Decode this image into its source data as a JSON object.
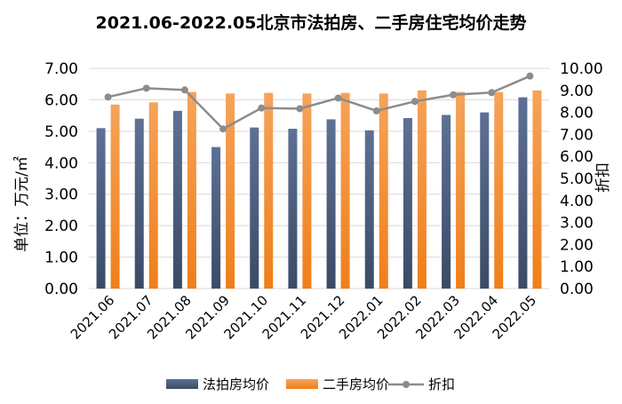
{
  "chart_data": {
    "type": "bar",
    "title": "2021.06-2022.05北京市法拍房、二手房住宅均价走势",
    "categories": [
      "2021.06",
      "2021.07",
      "2021.08",
      "2021.09",
      "2021.10",
      "2021.11",
      "2021.12",
      "2022.01",
      "2022.02",
      "2022.03",
      "2022.04",
      "2022.05"
    ],
    "ylabel_left": "单位：万元/㎡",
    "ylabel_right": "折扣",
    "ylim_left": [
      0,
      7
    ],
    "ylim_right": [
      0,
      10
    ],
    "yticks_left": [
      "0.00",
      "1.00",
      "2.00",
      "3.00",
      "4.00",
      "5.00",
      "6.00",
      "7.00"
    ],
    "yticks_right": [
      "0.00",
      "1.00",
      "2.00",
      "3.00",
      "4.00",
      "5.00",
      "6.00",
      "7.00",
      "8.00",
      "9.00",
      "10.00"
    ],
    "grid": true,
    "legend_position": "bottom",
    "series": [
      {
        "name": "法拍房均价",
        "type": "bar",
        "axis": "left",
        "color": "#44546a",
        "values": [
          5.1,
          5.4,
          5.65,
          4.5,
          5.12,
          5.08,
          5.38,
          5.03,
          5.42,
          5.52,
          5.6,
          6.08
        ]
      },
      {
        "name": "二手房均价",
        "type": "bar",
        "axis": "left",
        "color": "#f08a2c",
        "values": [
          5.85,
          5.92,
          6.25,
          6.2,
          6.22,
          6.2,
          6.22,
          6.2,
          6.3,
          6.25,
          6.25,
          6.3
        ]
      },
      {
        "name": "折扣",
        "type": "line",
        "axis": "right",
        "color": "#8c8c8c",
        "values": [
          8.7,
          9.1,
          9.02,
          7.25,
          8.2,
          8.17,
          8.65,
          8.07,
          8.5,
          8.8,
          8.9,
          9.65
        ]
      }
    ]
  }
}
